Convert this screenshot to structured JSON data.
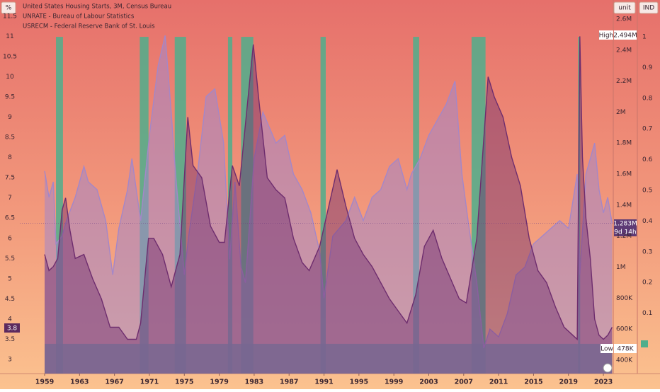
{
  "chart_data": {
    "type": "area",
    "legend": [
      "United States Housing Starts, 3M, Census Bureau",
      "UNRATE - Bureau of Labour Statistics",
      "USRECM - Federal Reserve Bank of St. Louis"
    ],
    "axis_titles": {
      "y": "%",
      "y2": "unit",
      "y3": "IND"
    },
    "xlim": [
      1956.16,
      2024.13
    ],
    "xticks": [
      1959,
      1963,
      1967,
      1971,
      1975,
      1979,
      1983,
      1987,
      1991,
      1995,
      1999,
      2003,
      2007,
      2011,
      2015,
      2019,
      2023
    ],
    "ylim": [
      2.65,
      11.9
    ],
    "yticks": [
      3,
      3.5,
      4,
      4.5,
      5,
      5.5,
      6,
      6.5,
      7,
      7.5,
      8,
      8.5,
      9,
      9.5,
      10,
      10.5,
      11,
      11.5
    ],
    "y2lim": [
      313000,
      2723000
    ],
    "y2ticks": [
      {
        "value": 400000,
        "label": "400K"
      },
      {
        "value": 600000,
        "label": "600K"
      },
      {
        "value": 800000,
        "label": "800K"
      },
      {
        "value": 1000000,
        "label": "1M"
      },
      {
        "value": 1200000,
        "label": "1.2M"
      },
      {
        "value": 1400000,
        "label": "1.4M"
      },
      {
        "value": 1600000,
        "label": "1.6M"
      },
      {
        "value": 1800000,
        "label": "1.8M"
      },
      {
        "value": 2000000,
        "label": "2M"
      },
      {
        "value": 2200000,
        "label": "2.2M"
      },
      {
        "value": 2400000,
        "label": "2.4M"
      },
      {
        "value": 2600000,
        "label": "2.6M"
      }
    ],
    "y3lim": [
      -0.097,
      1.12
    ],
    "y3ticks": [
      0.1,
      0.2,
      0.3,
      0.4,
      0.5,
      0.6,
      0.7,
      0.8,
      0.9,
      1
    ],
    "series": [
      {
        "name": "United States Housing Starts, 3M, Census Bureau",
        "axis": "y2",
        "color": "#a487c8",
        "x": [
          1959.0,
          1959.5,
          1960.0,
          1960.3,
          1961.0,
          1961.5,
          1962.5,
          1963.5,
          1964.0,
          1965.0,
          1966.0,
          1966.8,
          1967.5,
          1968.5,
          1969.0,
          1970.0,
          1971.0,
          1972.0,
          1972.8,
          1973.5,
          1974.0,
          1975.0,
          1975.5,
          1976.5,
          1977.5,
          1978.5,
          1979.5,
          1980.2,
          1980.8,
          1981.5,
          1982.0,
          1983.0,
          1983.5,
          1984.0,
          1985.5,
          1986.5,
          1987.5,
          1988.5,
          1989.5,
          1990.5,
          1991.0,
          1992.0,
          1993.5,
          1994.5,
          1995.5,
          1996.5,
          1997.5,
          1998.5,
          1999.5,
          2000.5,
          2001.0,
          2002.0,
          2003.0,
          2004.0,
          2005.0,
          2006.0,
          2006.8,
          2007.5,
          2008.5,
          2009.3,
          2010.0,
          2011.0,
          2012.0,
          2013.0,
          2014.0,
          2015.0,
          2016.0,
          2017.0,
          2018.0,
          2019.0,
          2020.0,
          2020.3,
          2021.0,
          2021.5,
          2022.0,
          2022.5,
          2023.0,
          2023.5,
          2024.0
        ],
        "values": [
          1620000,
          1450000,
          1550000,
          1150000,
          1200000,
          1300000,
          1450000,
          1650000,
          1550000,
          1500000,
          1300000,
          950000,
          1250000,
          1500000,
          1700000,
          1300000,
          1850000,
          2300000,
          2494000,
          2000000,
          1600000,
          950000,
          1200000,
          1600000,
          2100000,
          2150000,
          1800000,
          1050000,
          1550000,
          1000000,
          900000,
          1700000,
          1850000,
          2000000,
          1800000,
          1850000,
          1600000,
          1500000,
          1350000,
          1100000,
          800000,
          1200000,
          1300000,
          1450000,
          1300000,
          1450000,
          1500000,
          1650000,
          1700000,
          1500000,
          1600000,
          1700000,
          1850000,
          1950000,
          2050000,
          2200000,
          1600000,
          1300000,
          900000,
          478000,
          600000,
          550000,
          700000,
          950000,
          1000000,
          1150000,
          1200000,
          1250000,
          1300000,
          1250000,
          1600000,
          950000,
          1600000,
          1700000,
          1800000,
          1500000,
          1350000,
          1450000,
          1283000
        ]
      },
      {
        "name": "UNRATE - Bureau of Labour Statistics",
        "axis": "y",
        "color": "#6e2d6e",
        "x": [
          1959.0,
          1959.5,
          1960.0,
          1960.5,
          1961.0,
          1961.4,
          1961.9,
          1962.5,
          1963.5,
          1964.5,
          1965.5,
          1966.5,
          1967.5,
          1968.5,
          1969.5,
          1970.0,
          1970.9,
          1971.5,
          1972.5,
          1973.5,
          1974.5,
          1975.4,
          1976.0,
          1977.0,
          1978.0,
          1979.0,
          1979.6,
          1980.5,
          1981.3,
          1982.9,
          1983.5,
          1984.5,
          1985.5,
          1986.5,
          1987.5,
          1988.5,
          1989.3,
          1990.5,
          1992.5,
          1993.5,
          1994.5,
          1995.5,
          1996.5,
          1997.5,
          1998.5,
          1999.5,
          2000.5,
          2001.5,
          2002.5,
          2003.5,
          2004.5,
          2005.5,
          2006.5,
          2007.3,
          2008.5,
          2009.8,
          2010.5,
          2011.5,
          2012.5,
          2013.5,
          2014.5,
          2015.5,
          2016.5,
          2017.5,
          2018.5,
          2019.5,
          2020.0,
          2020.3,
          2020.6,
          2021.0,
          2021.5,
          2022.0,
          2022.5,
          2023.0,
          2023.5,
          2024.0
        ],
        "values": [
          5.6,
          5.2,
          5.3,
          5.5,
          6.7,
          7.0,
          6.2,
          5.5,
          5.6,
          5.0,
          4.5,
          3.8,
          3.8,
          3.5,
          3.5,
          3.9,
          6.0,
          6.0,
          5.6,
          4.8,
          5.6,
          9.0,
          7.8,
          7.5,
          6.3,
          5.9,
          5.9,
          7.8,
          7.3,
          10.8,
          9.5,
          7.5,
          7.2,
          7.0,
          6.0,
          5.4,
          5.2,
          5.8,
          7.7,
          6.8,
          6.0,
          5.6,
          5.3,
          4.9,
          4.5,
          4.2,
          3.9,
          4.6,
          5.8,
          6.2,
          5.5,
          5.0,
          4.5,
          4.4,
          6.0,
          10.0,
          9.5,
          9.0,
          8.0,
          7.3,
          6.0,
          5.2,
          4.9,
          4.3,
          3.8,
          3.6,
          3.5,
          11.0,
          8.0,
          6.5,
          5.5,
          4.0,
          3.6,
          3.5,
          3.6,
          3.8
        ]
      },
      {
        "name": "USRECM - Federal Reserve Bank of St. Louis",
        "axis": "y3",
        "color": "#4fae8c",
        "periods": [
          [
            1960.3,
            1961.1
          ],
          [
            1969.9,
            1970.9
          ],
          [
            1973.9,
            1975.2
          ],
          [
            1980.0,
            1980.5
          ],
          [
            1981.5,
            1982.9
          ],
          [
            1990.6,
            1991.2
          ],
          [
            2001.2,
            2001.9
          ],
          [
            2007.9,
            2009.5
          ],
          [
            2020.1,
            2020.3
          ]
        ],
        "values": [
          1,
          1,
          1,
          1,
          1,
          1,
          1,
          1,
          1
        ]
      }
    ],
    "annotations": {
      "high_label": "High",
      "high_value": "2.494M",
      "low_label": "Low",
      "low_value": "478K",
      "last_value": "1.283M",
      "countdown": "9d 14h",
      "last_rate": "3.8"
    }
  }
}
